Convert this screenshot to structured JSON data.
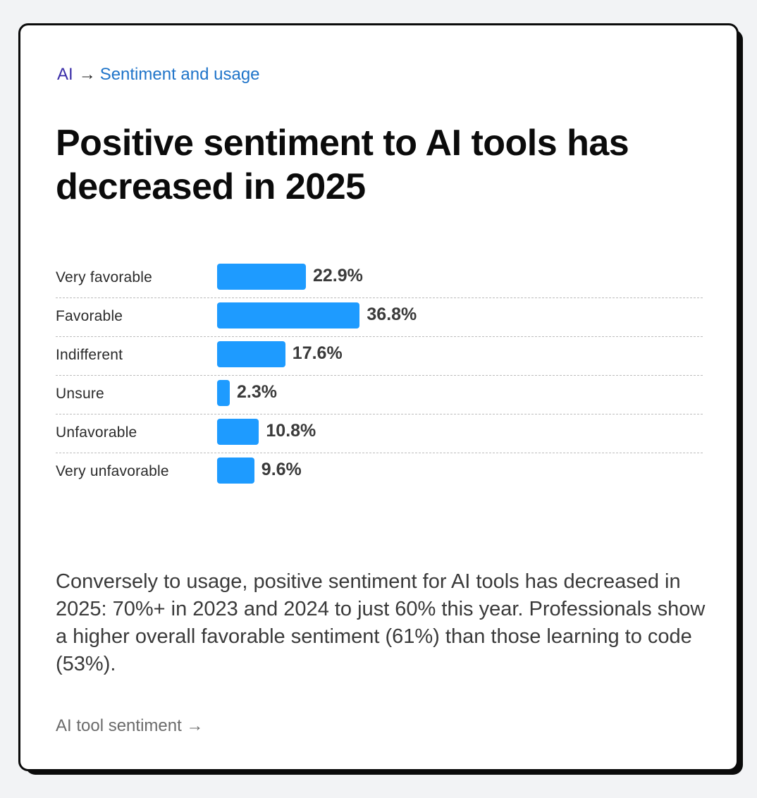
{
  "breadcrumb": {
    "root": "AI",
    "separator": "→",
    "current": "Sentiment and usage"
  },
  "title": "Positive sentiment to AI tools has decreased in 2025",
  "colors": {
    "bar": "#1e9bff",
    "breadcrumb_root": "#3b2ea8",
    "breadcrumb_current": "#1f74c9"
  },
  "chart_data": {
    "type": "bar",
    "orientation": "horizontal",
    "categories": [
      "Very favorable",
      "Favorable",
      "Indifferent",
      "Unsure",
      "Unfavorable",
      "Very unfavorable"
    ],
    "values": [
      22.9,
      36.8,
      17.6,
      2.3,
      10.8,
      9.6
    ],
    "value_labels": [
      "22.9%",
      "36.8%",
      "17.6%",
      "2.3%",
      "10.8%",
      "9.6%"
    ],
    "grid": false
  },
  "description": "Conversely to usage, positive sentiment for AI tools has decreased in 2025: 70%+ in 2023 and 2024 to just 60% this year. Professionals show a higher overall favorable sentiment (61%) than those learning to code (53%).",
  "footer": {
    "link": "AI tool sentiment →"
  }
}
